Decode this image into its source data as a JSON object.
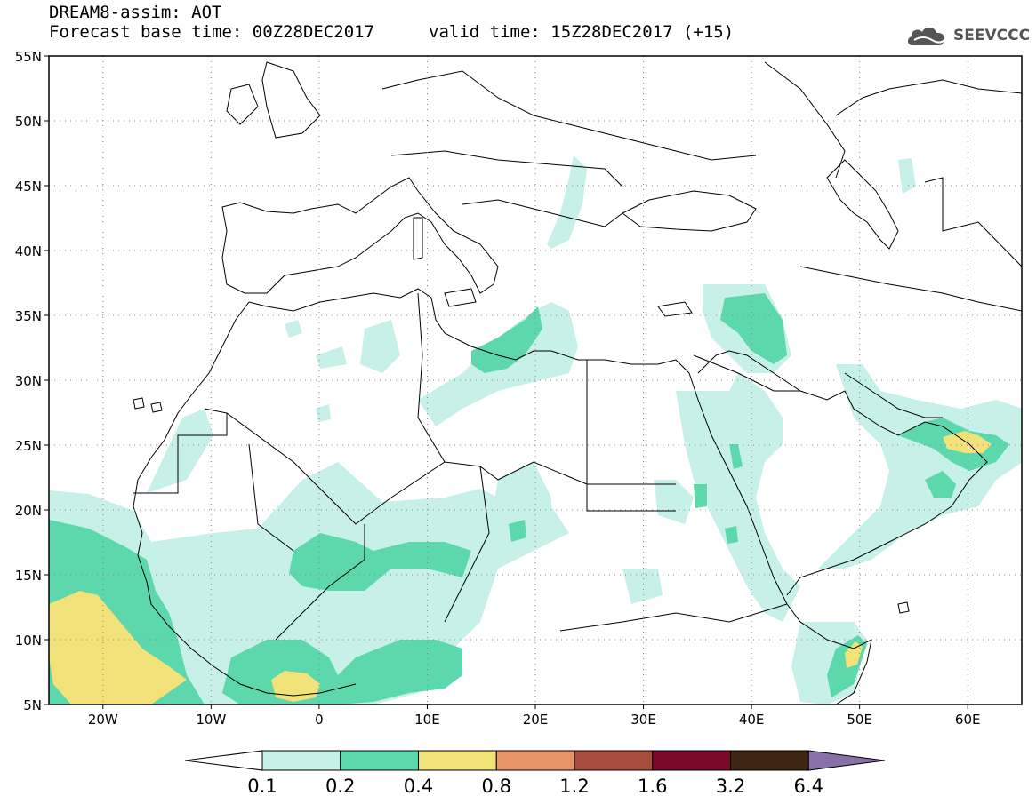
{
  "header": {
    "line1": "DREAM8-assim: AOT",
    "line2": "Forecast base time: 00Z28DEC2017",
    "valid": "valid time: 15Z28DEC2017 (+15)"
  },
  "logo": {
    "text": "SEEVCCC",
    "icon": "cloud-icon"
  },
  "map": {
    "lon_range": [
      -25,
      65
    ],
    "lat_range": [
      5,
      55
    ],
    "lat_ticks": [
      {
        "v": 55,
        "label": "55N"
      },
      {
        "v": 50,
        "label": "50N"
      },
      {
        "v": 45,
        "label": "45N"
      },
      {
        "v": 40,
        "label": "40N"
      },
      {
        "v": 35,
        "label": "35N"
      },
      {
        "v": 30,
        "label": "30N"
      },
      {
        "v": 25,
        "label": "25N"
      },
      {
        "v": 20,
        "label": "20N"
      },
      {
        "v": 15,
        "label": "15N"
      },
      {
        "v": 10,
        "label": "10N"
      },
      {
        "v": 5,
        "label": "5N"
      }
    ],
    "lon_ticks": [
      {
        "v": -20,
        "label": "20W"
      },
      {
        "v": -10,
        "label": "10W"
      },
      {
        "v": 0,
        "label": "0"
      },
      {
        "v": 10,
        "label": "10E"
      },
      {
        "v": 20,
        "label": "20E"
      },
      {
        "v": 30,
        "label": "30E"
      },
      {
        "v": 40,
        "label": "40E"
      },
      {
        "v": 50,
        "label": "50E"
      },
      {
        "v": 60,
        "label": "60E"
      }
    ],
    "colors": {
      "light": "#c6f0e8",
      "mid": "#5dd7ac",
      "yellow": "#f2e27a"
    }
  },
  "colorbar": {
    "labels": [
      "0.1",
      "0.2",
      "0.4",
      "0.8",
      "1.2",
      "1.6",
      "3.2",
      "6.4"
    ],
    "colors": [
      "#ffffff",
      "#c6f0e8",
      "#5dd7ac",
      "#f2e27a",
      "#e8936a",
      "#a84d3e",
      "#7a0a2a",
      "#3d2614",
      "#8a70a8"
    ]
  }
}
